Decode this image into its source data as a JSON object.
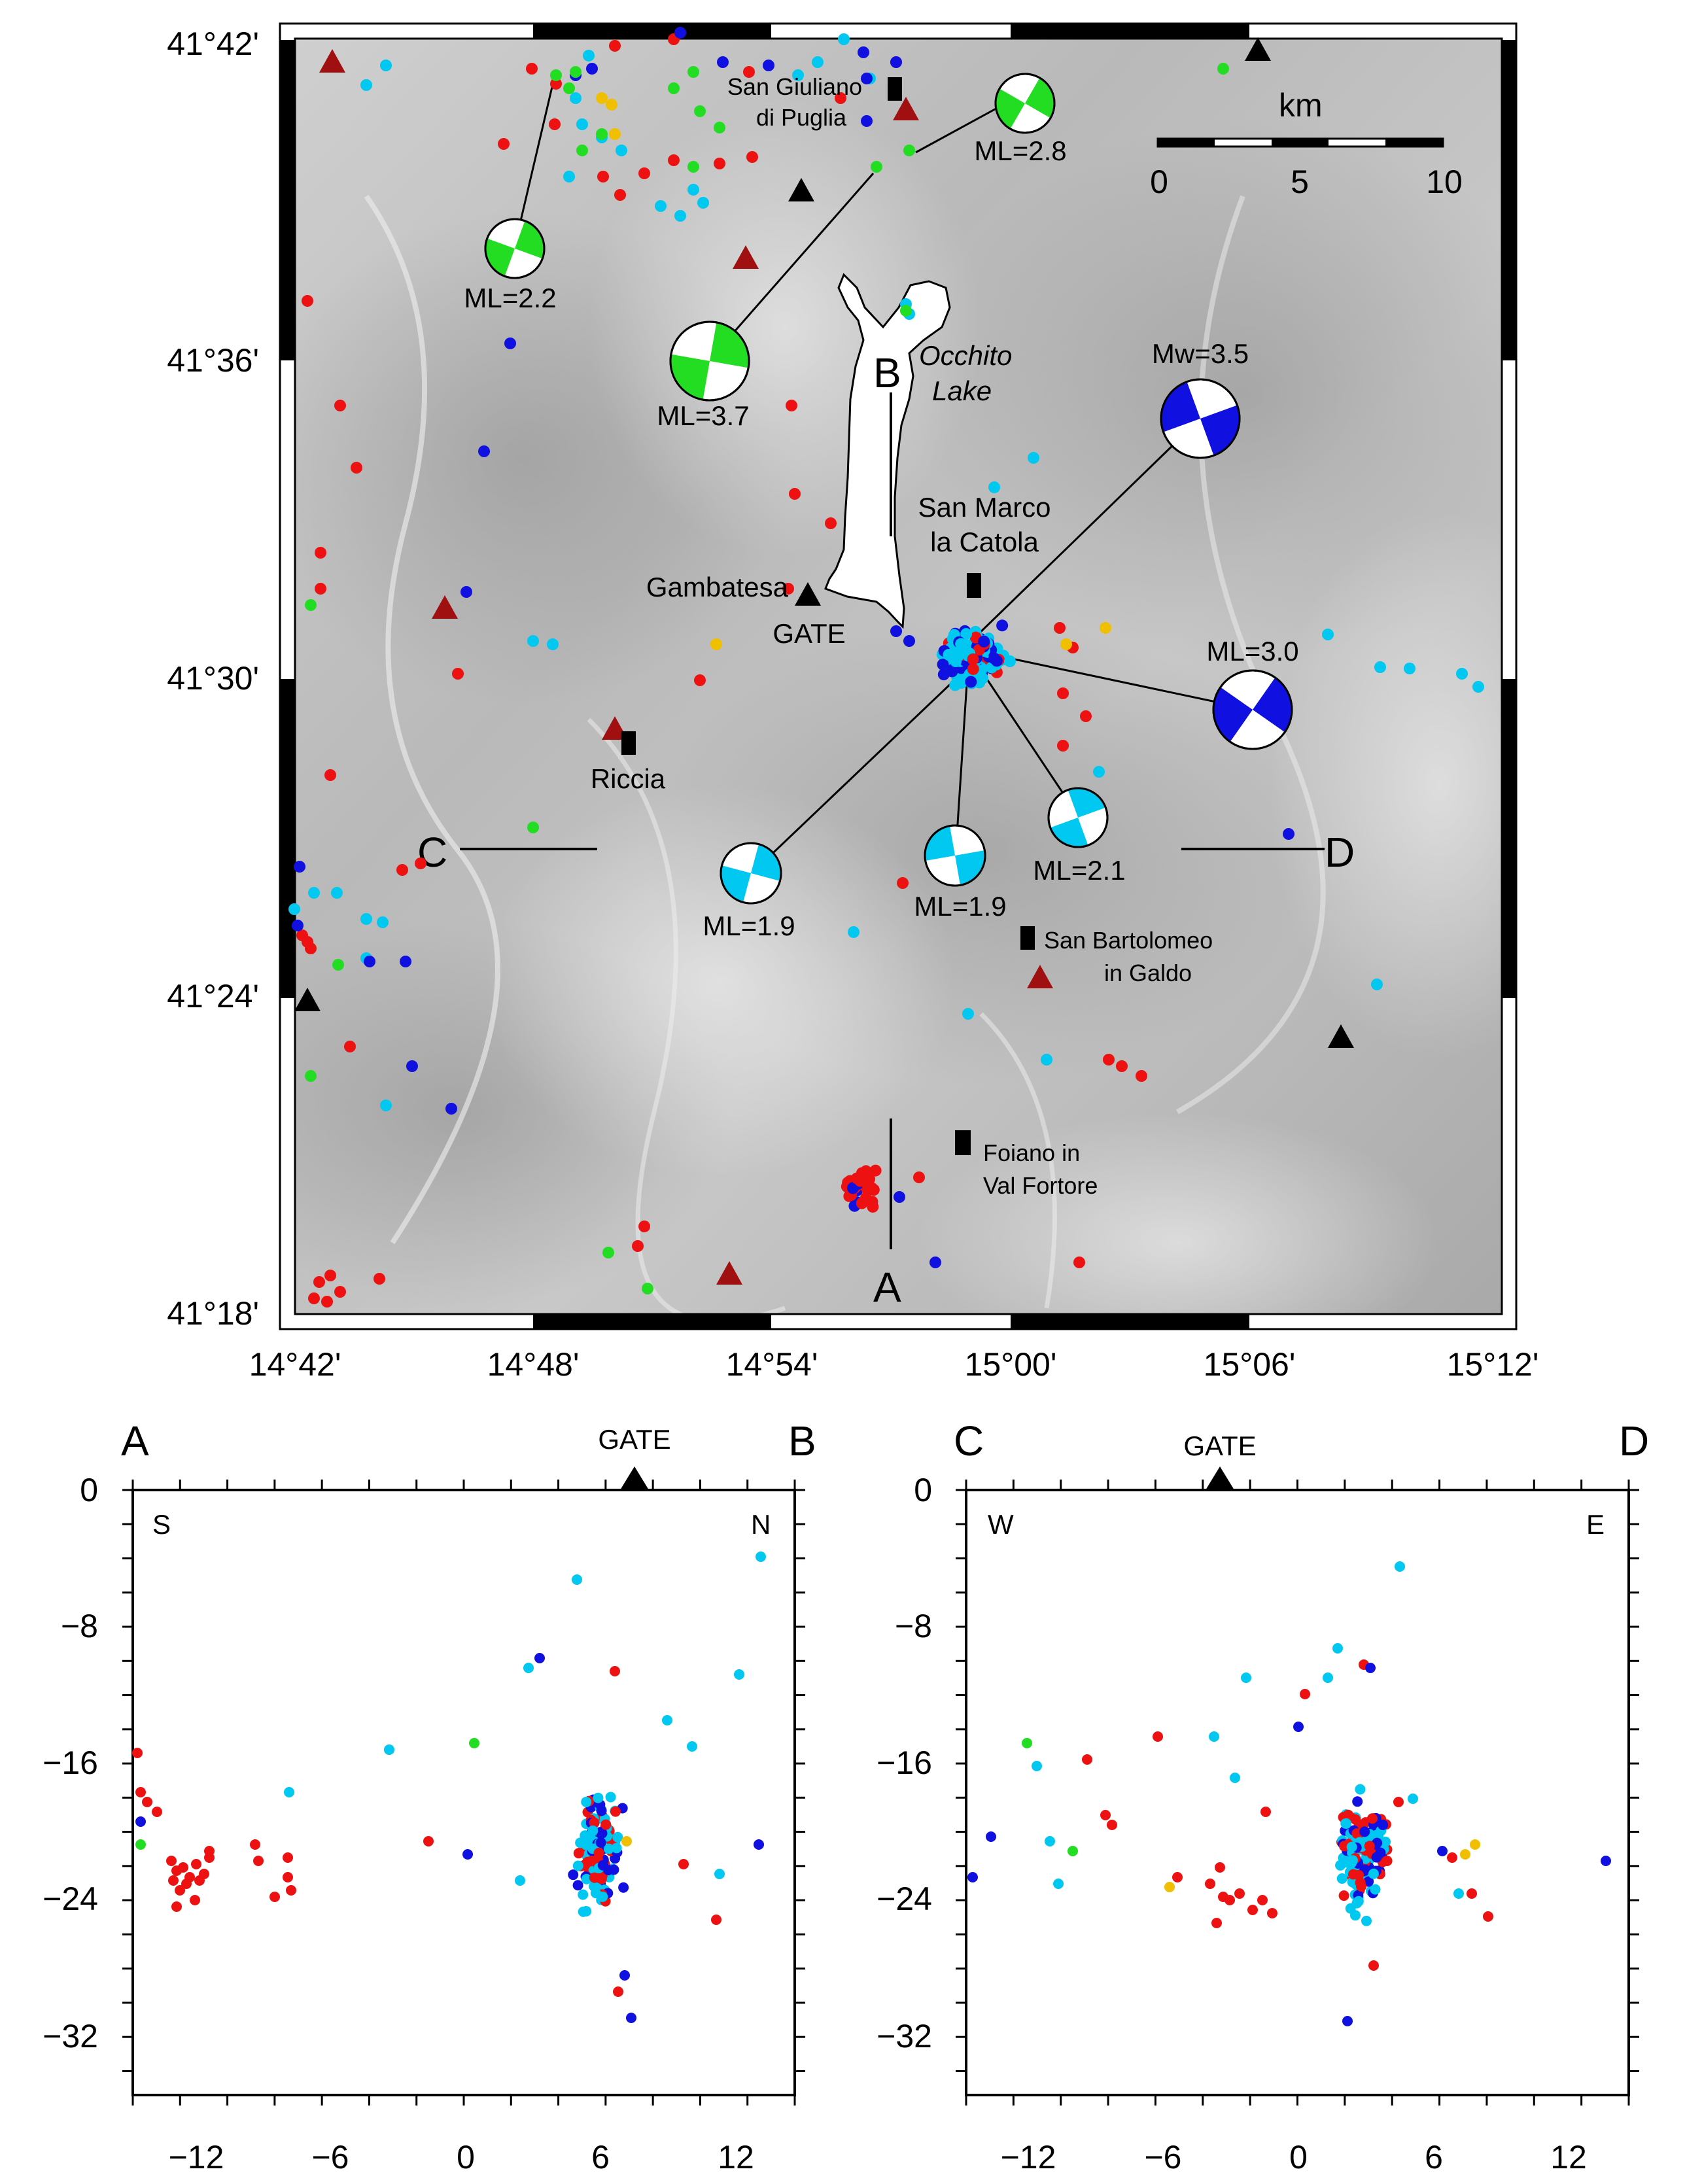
{
  "map": {
    "lat_ticks": [
      "41°42'",
      "41°36'",
      "41°30'",
      "41°24'",
      "41°18'"
    ],
    "lon_ticks": [
      "14°42'",
      "14°48'",
      "14°54'",
      "15°00'",
      "15°06'",
      "15°12'"
    ],
    "scale": {
      "unit": "km",
      "ticks": [
        "0",
        "5",
        "10"
      ]
    },
    "towns": {
      "san_giuliano": [
        "San Giuliano",
        "di Puglia"
      ],
      "san_marco": [
        "San Marco",
        "la Catola"
      ],
      "gambatesa": "Gambatesa",
      "gate": "GATE",
      "riccia": "Riccia",
      "san_bartolomeo": [
        "San Bartolomeo",
        "in Galdo"
      ],
      "foiano": [
        "Foiano in",
        "Val Fortore"
      ]
    },
    "lake": [
      "Occhito",
      "Lake"
    ],
    "profile_letters": {
      "a": "A",
      "b": "B",
      "c": "C",
      "d": "D"
    },
    "focal_mechanisms": [
      {
        "label": "ML=2.2",
        "color": "#22dd22"
      },
      {
        "label": "ML=3.7",
        "color": "#22dd22"
      },
      {
        "label": "ML=2.8",
        "color": "#22dd22"
      },
      {
        "label": "Mw=3.5",
        "color": "#1010e0"
      },
      {
        "label": "ML=3.0",
        "color": "#1010e0"
      },
      {
        "label": "ML=2.1",
        "color": "#00c8f0"
      },
      {
        "label": "ML=1.9",
        "color": "#00c8f0"
      },
      {
        "label": "ML=1.9",
        "color": "#00c8f0"
      }
    ],
    "triangle_colors": {
      "station": "#000000",
      "other": "#a01010"
    }
  },
  "colors": {
    "red": "#ee1111",
    "blue": "#1010e0",
    "cyan": "#00c8f0",
    "green": "#22dd22",
    "yellow": "#f0c000"
  },
  "sections": [
    {
      "left": "A",
      "right": "B",
      "gate": "GATE",
      "corner_left": "S",
      "corner_right": "N",
      "x_ticks": [
        "−12",
        "−6",
        "0",
        "6",
        "12"
      ],
      "y_ticks": [
        "0",
        "−8",
        "−16",
        "−24",
        "−32"
      ]
    },
    {
      "left": "C",
      "right": "D",
      "gate": "GATE",
      "corner_left": "W",
      "corner_right": "E",
      "x_ticks": [
        "−12",
        "−6",
        "0",
        "6",
        "12"
      ],
      "y_ticks": [
        "0",
        "−8",
        "−16",
        "−24",
        "−32"
      ]
    }
  ]
}
